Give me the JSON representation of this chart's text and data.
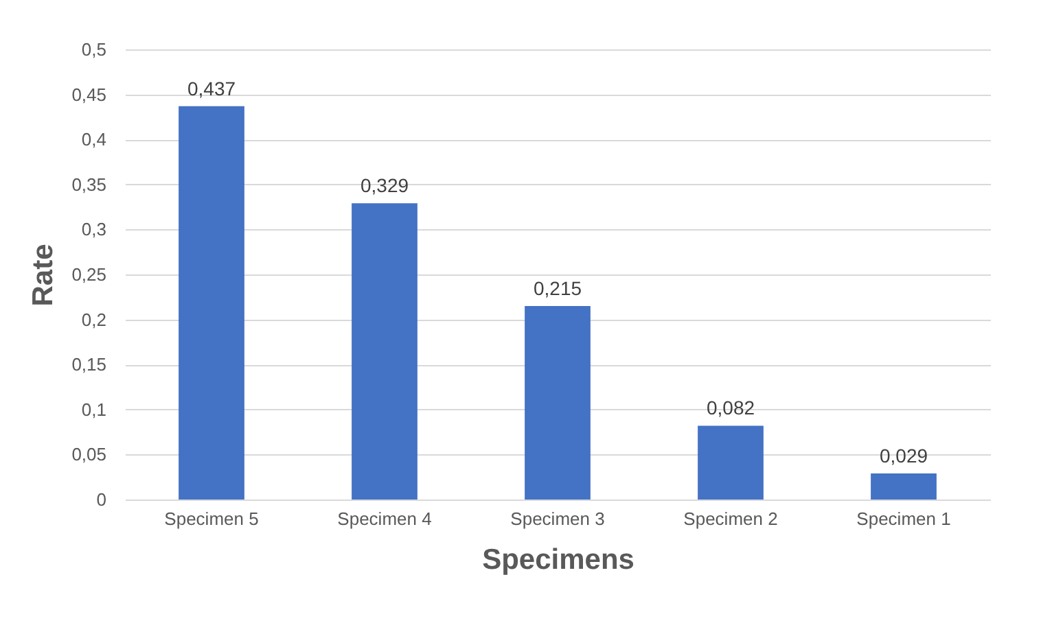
{
  "chart_data": {
    "type": "bar",
    "categories": [
      "Specimen 5",
      "Specimen 4",
      "Specimen 3",
      "Specimen 2",
      "Specimen 1"
    ],
    "values": [
      0.437,
      0.329,
      0.215,
      0.082,
      0.029
    ],
    "value_labels": [
      "0,437",
      "0,329",
      "0,215",
      "0,082",
      "0,029"
    ],
    "color": "#4472c4",
    "xlabel": "Specimens",
    "ylabel": "Rate",
    "ylim": [
      0,
      0.5
    ],
    "yticks": [
      0,
      {
        "value": 0.05,
        "label": "0,05"
      },
      {
        "value": 0.1,
        "label": "0,1"
      },
      {
        "value": 0.15,
        "label": "0,15"
      },
      {
        "value": 0.2,
        "label": "0,2"
      },
      {
        "value": 0.25,
        "label": "0,25"
      },
      {
        "value": 0.3,
        "label": "0,3"
      },
      {
        "value": 0.35,
        "label": "0,35"
      },
      {
        "value": 0.4,
        "label": "0,4"
      },
      {
        "value": 0.45,
        "label": "0,45"
      },
      {
        "value": 0.5,
        "label": "0,5"
      }
    ],
    "grid": "y"
  }
}
